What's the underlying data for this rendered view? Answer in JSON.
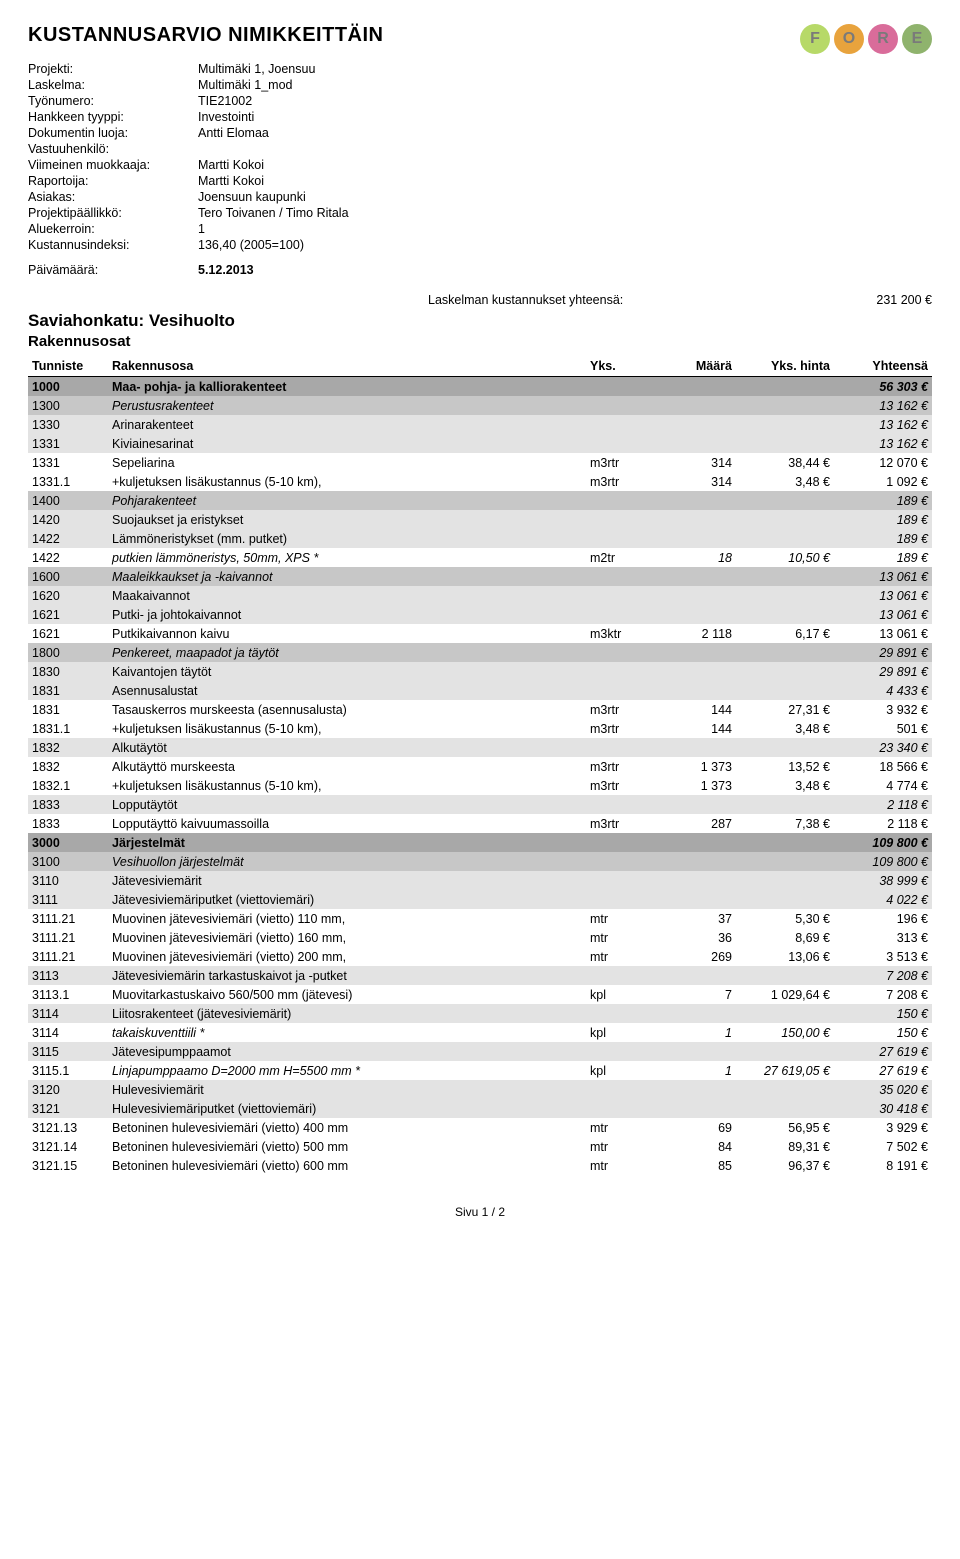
{
  "title": "KUSTANNUSARVIO NIMIKKEITTÄIN",
  "logo": {
    "letters": [
      "F",
      "O",
      "R",
      "E"
    ],
    "colors": [
      "#b7d968",
      "#e8a33d",
      "#d96c9a",
      "#8fb36d"
    ]
  },
  "meta": [
    {
      "label": "Projekti:",
      "value": "Multimäki 1, Joensuu"
    },
    {
      "label": "Laskelma:",
      "value": "Multimäki 1_mod"
    },
    {
      "label": "Työnumero:",
      "value": "TIE21002"
    },
    {
      "label": "Hankkeen tyyppi:",
      "value": "Investointi"
    },
    {
      "label": "Dokumentin luoja:",
      "value": "Antti Elomaa"
    },
    {
      "label": "Vastuuhenkilö:",
      "value": ""
    },
    {
      "label": "Viimeinen muokkaaja:",
      "value": "Martti Kokoi"
    },
    {
      "label": "Raportoija:",
      "value": "Martti Kokoi"
    },
    {
      "label": "Asiakas:",
      "value": "Joensuun kaupunki"
    },
    {
      "label": "Projektipäällikkö:",
      "value": "Tero Toivanen / Timo Ritala"
    },
    {
      "label": "Aluekerroin:",
      "value": "1"
    },
    {
      "label": "Kustannusindeksi:",
      "value": "136,40 (2005=100)"
    }
  ],
  "date": {
    "label": "Päivämäärä:",
    "value": "5.12.2013"
  },
  "total": {
    "label": "Laskelman kustannukset yhteensä:",
    "value": "231 200 €"
  },
  "section": "Saviahonkatu: Vesihuolto",
  "subsection": "Rakennusosat",
  "columns": {
    "id": "Tunniste",
    "desc": "Rakennusosa",
    "unit": "Yks.",
    "qty": "Määrä",
    "price": "Yks. hinta",
    "total": "Yhteensä"
  },
  "rows": [
    {
      "lvl": 1,
      "id": "1000",
      "desc": "Maa- pohja- ja kalliorakenteet",
      "total": "56 303 €"
    },
    {
      "lvl": 2,
      "id": "1300",
      "desc": "Perustusrakenteet",
      "total": "13 162 €"
    },
    {
      "lvl": 3,
      "id": "1330",
      "desc": "Arinarakenteet",
      "total": "13 162 €"
    },
    {
      "lvl": 3,
      "id": "1331",
      "desc": "Kiviainesarinat",
      "total": "13 162 €"
    },
    {
      "lvl": 4,
      "id": "1331",
      "desc": "Sepeliarina",
      "unit": "m3rtr",
      "qty": "314",
      "price": "38,44 €",
      "total": "12 070 €"
    },
    {
      "lvl": 4,
      "id": "1331.1",
      "desc": "+kuljetuksen lisäkustannus (5-10 km),",
      "unit": "m3rtr",
      "qty": "314",
      "price": "3,48 €",
      "total": "1 092 €"
    },
    {
      "lvl": 2,
      "id": "1400",
      "desc": "Pohjarakenteet",
      "total": "189 €"
    },
    {
      "lvl": 3,
      "id": "1420",
      "desc": "Suojaukset ja eristykset",
      "total": "189 €"
    },
    {
      "lvl": 3,
      "id": "1422",
      "desc": "Lämmöneristykset (mm. putket)",
      "total": "189 €"
    },
    {
      "lvl": 4,
      "italic": true,
      "id": "1422",
      "desc": "putkien lämmöneristys, 50mm, XPS *",
      "unit": "m2tr",
      "qty": "18",
      "price": "10,50 €",
      "total": "189 €"
    },
    {
      "lvl": 2,
      "id": "1600",
      "desc": "Maaleikkaukset ja -kaivannot",
      "total": "13 061 €"
    },
    {
      "lvl": 3,
      "id": "1620",
      "desc": "Maakaivannot",
      "total": "13 061 €"
    },
    {
      "lvl": 3,
      "id": "1621",
      "desc": "Putki- ja johtokaivannot",
      "total": "13 061 €"
    },
    {
      "lvl": 4,
      "id": "1621",
      "desc": "Putkikaivannon kaivu",
      "unit": "m3ktr",
      "qty": "2 118",
      "price": "6,17 €",
      "total": "13 061 €"
    },
    {
      "lvl": 2,
      "id": "1800",
      "desc": "Penkereet, maapadot ja täytöt",
      "total": "29 891 €"
    },
    {
      "lvl": 3,
      "id": "1830",
      "desc": "Kaivantojen täytöt",
      "total": "29 891 €"
    },
    {
      "lvl": 3,
      "id": "1831",
      "desc": "Asennusalustat",
      "total": "4 433 €"
    },
    {
      "lvl": 4,
      "id": "1831",
      "desc": "Tasauskerros murskeesta (asennusalusta)",
      "unit": "m3rtr",
      "qty": "144",
      "price": "27,31 €",
      "total": "3 932 €"
    },
    {
      "lvl": 4,
      "id": "1831.1",
      "desc": "+kuljetuksen lisäkustannus (5-10 km),",
      "unit": "m3rtr",
      "qty": "144",
      "price": "3,48 €",
      "total": "501 €"
    },
    {
      "lvl": 3,
      "id": "1832",
      "desc": "Alkutäytöt",
      "total": "23 340 €"
    },
    {
      "lvl": 4,
      "id": "1832",
      "desc": "Alkutäyttö murskeesta",
      "unit": "m3rtr",
      "qty": "1 373",
      "price": "13,52 €",
      "total": "18 566 €"
    },
    {
      "lvl": 4,
      "id": "1832.1",
      "desc": "+kuljetuksen lisäkustannus (5-10 km),",
      "unit": "m3rtr",
      "qty": "1 373",
      "price": "3,48 €",
      "total": "4 774 €"
    },
    {
      "lvl": 3,
      "id": "1833",
      "desc": "Lopputäytöt",
      "total": "2 118 €"
    },
    {
      "lvl": 4,
      "id": "1833",
      "desc": "Lopputäyttö kaivuumassoilla",
      "unit": "m3rtr",
      "qty": "287",
      "price": "7,38 €",
      "total": "2 118 €"
    },
    {
      "lvl": 1,
      "id": "3000",
      "desc": "Järjestelmät",
      "total": "109 800 €"
    },
    {
      "lvl": 2,
      "id": "3100",
      "desc": "Vesihuollon järjestelmät",
      "total": "109 800 €"
    },
    {
      "lvl": 3,
      "id": "3110",
      "desc": "Jätevesiviemärit",
      "total": "38 999 €"
    },
    {
      "lvl": 3,
      "id": "3111",
      "desc": "Jätevesiviemäriputket (viettoviemäri)",
      "total": "4 022 €"
    },
    {
      "lvl": 4,
      "id": "3111.21",
      "desc": "Muovinen jätevesiviemäri (vietto) 110 mm,",
      "unit": "mtr",
      "qty": "37",
      "price": "5,30 €",
      "total": "196 €"
    },
    {
      "lvl": 4,
      "id": "3111.21",
      "desc": "Muovinen jätevesiviemäri (vietto) 160 mm,",
      "unit": "mtr",
      "qty": "36",
      "price": "8,69 €",
      "total": "313 €"
    },
    {
      "lvl": 4,
      "id": "3111.21",
      "desc": "Muovinen jätevesiviemäri (vietto) 200 mm,",
      "unit": "mtr",
      "qty": "269",
      "price": "13,06 €",
      "total": "3 513 €"
    },
    {
      "lvl": 3,
      "id": "3113",
      "desc": "Jätevesiviemärin tarkastuskaivot ja -putket",
      "total": "7 208 €"
    },
    {
      "lvl": 4,
      "id": "3113.1",
      "desc": "Muovitarkastuskaivo 560/500 mm (jätevesi)",
      "unit": "kpl",
      "qty": "7",
      "price": "1 029,64 €",
      "total": "7 208 €"
    },
    {
      "lvl": 3,
      "id": "3114",
      "desc": "Liitosrakenteet (jätevesiviemärit)",
      "total": "150 €"
    },
    {
      "lvl": 4,
      "italic": true,
      "id": "3114",
      "desc": "takaiskuventtiili *",
      "unit": "kpl",
      "qty": "1",
      "price": "150,00 €",
      "total": "150 €"
    },
    {
      "lvl": 3,
      "id": "3115",
      "desc": "Jätevesipumppaamot",
      "total": "27 619 €"
    },
    {
      "lvl": 4,
      "italic": true,
      "id": "3115.1",
      "desc": "Linjapumppaamo D=2000 mm H=5500 mm *",
      "unit": "kpl",
      "qty": "1",
      "price": "27 619,05 €",
      "total": "27 619 €"
    },
    {
      "lvl": 3,
      "id": "3120",
      "desc": "Hulevesiviemärit",
      "total": "35 020 €"
    },
    {
      "lvl": 3,
      "id": "3121",
      "desc": "Hulevesiviemäriputket (viettoviemäri)",
      "total": "30 418 €"
    },
    {
      "lvl": 4,
      "id": "3121.13",
      "desc": "Betoninen hulevesiviemäri (vietto) 400 mm",
      "unit": "mtr",
      "qty": "69",
      "price": "56,95 €",
      "total": "3 929 €"
    },
    {
      "lvl": 4,
      "id": "3121.14",
      "desc": "Betoninen hulevesiviemäri (vietto) 500 mm",
      "unit": "mtr",
      "qty": "84",
      "price": "89,31 €",
      "total": "7 502 €"
    },
    {
      "lvl": 4,
      "id": "3121.15",
      "desc": "Betoninen hulevesiviemäri (vietto) 600 mm",
      "unit": "mtr",
      "qty": "85",
      "price": "96,37 €",
      "total": "8 191 €"
    }
  ],
  "footer": "Sivu 1 / 2"
}
